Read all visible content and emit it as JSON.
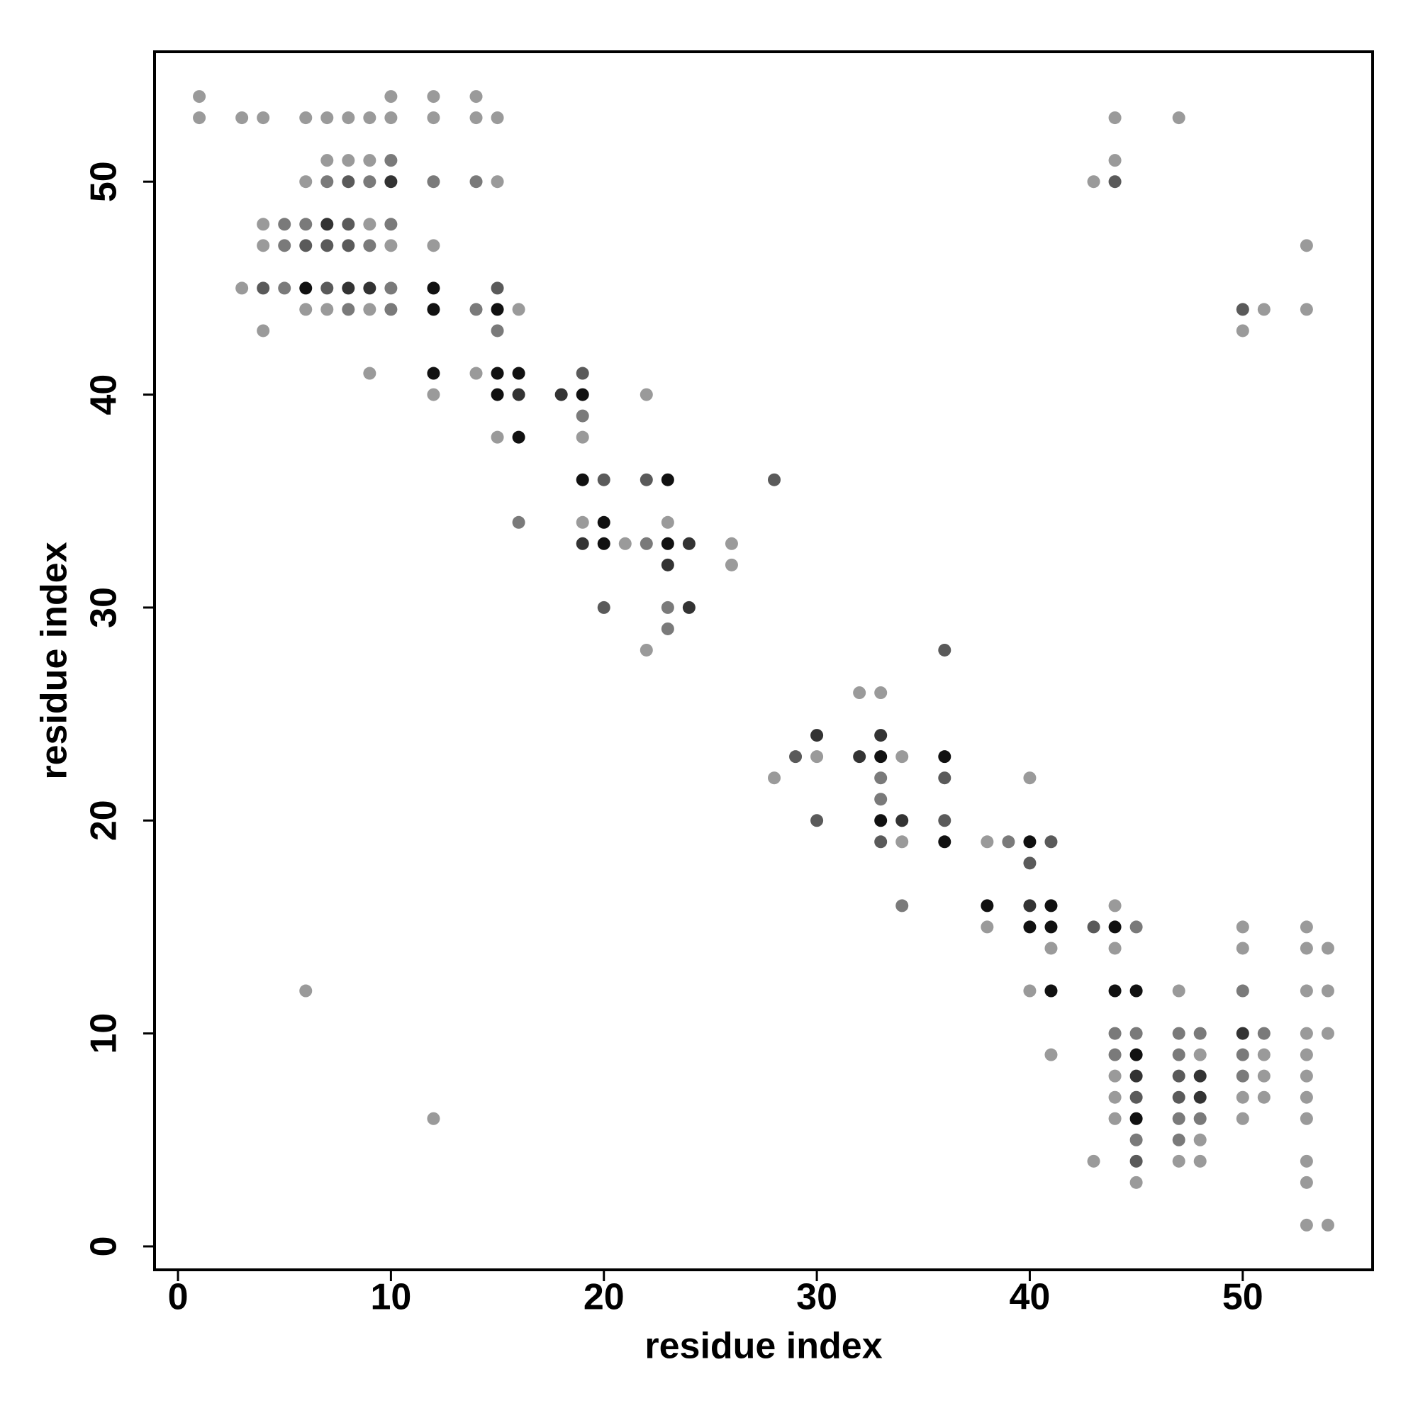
{
  "chart_data": {
    "type": "scatter",
    "xlabel": "residue index",
    "ylabel": "residue index",
    "xlim": [
      -1.1,
      56.1
    ],
    "ylim": [
      -1.1,
      56.1
    ],
    "xticks": [
      0,
      10,
      20,
      30,
      40,
      50
    ],
    "yticks": [
      0,
      10,
      20,
      30,
      40,
      50
    ],
    "series": [
      {
        "color": "#9a9a9a",
        "x": [
          1,
          10,
          12,
          14,
          1,
          3,
          4,
          6,
          7,
          8,
          9,
          10,
          12,
          14,
          15,
          44,
          47,
          7,
          8,
          9,
          44,
          6,
          15,
          43,
          4,
          9,
          4,
          10,
          12,
          53,
          3,
          6,
          7,
          9,
          16,
          51,
          53,
          4,
          50,
          9,
          14,
          12,
          22,
          15,
          19,
          19,
          23,
          21,
          26,
          26,
          22,
          32,
          33,
          30,
          34,
          28,
          40,
          34,
          38,
          44,
          38,
          50,
          53,
          41,
          44,
          50,
          53,
          54,
          6,
          40,
          47,
          53,
          54,
          53,
          54,
          41,
          48,
          51,
          53,
          44,
          51,
          53,
          44,
          50,
          51,
          53,
          12,
          44,
          50,
          53,
          48,
          43,
          47,
          48,
          53,
          45,
          53,
          53,
          54
        ],
        "y": [
          54,
          54,
          54,
          54,
          53,
          53,
          53,
          53,
          53,
          53,
          53,
          53,
          53,
          53,
          53,
          53,
          53,
          51,
          51,
          51,
          51,
          50,
          50,
          50,
          48,
          48,
          47,
          47,
          47,
          47,
          45,
          44,
          44,
          44,
          44,
          44,
          44,
          43,
          43,
          41,
          41,
          40,
          40,
          38,
          38,
          34,
          34,
          33,
          33,
          32,
          28,
          26,
          26,
          23,
          23,
          22,
          22,
          19,
          19,
          16,
          15,
          15,
          15,
          14,
          14,
          14,
          14,
          14,
          12,
          12,
          12,
          12,
          12,
          10,
          10,
          9,
          9,
          9,
          9,
          8,
          8,
          8,
          7,
          7,
          7,
          7,
          6,
          6,
          6,
          6,
          5,
          4,
          4,
          4,
          4,
          3,
          3,
          1,
          1
        ]
      },
      {
        "color": "#7a7a7a",
        "x": [
          10,
          7,
          9,
          12,
          14,
          5,
          6,
          10,
          5,
          9,
          5,
          10,
          8,
          10,
          14,
          15,
          19,
          16,
          22,
          23,
          23,
          33,
          33,
          39,
          34,
          45,
          50,
          44,
          45,
          47,
          48,
          51,
          44,
          47,
          50,
          50,
          47,
          48,
          45,
          47
        ],
        "y": [
          51,
          50,
          50,
          50,
          50,
          48,
          48,
          48,
          47,
          47,
          45,
          45,
          44,
          44,
          44,
          43,
          39,
          34,
          33,
          30,
          29,
          22,
          21,
          19,
          16,
          15,
          12,
          10,
          10,
          10,
          10,
          10,
          9,
          9,
          9,
          8,
          6,
          6,
          5,
          5
        ]
      },
      {
        "color": "#5a5a5a",
        "x": [
          8,
          44,
          8,
          6,
          7,
          8,
          4,
          7,
          15,
          50,
          19,
          20,
          22,
          28,
          20,
          36,
          29,
          36,
          30,
          36,
          33,
          41,
          40,
          43,
          47,
          45,
          47,
          45
        ],
        "y": [
          50,
          50,
          48,
          47,
          47,
          47,
          45,
          45,
          45,
          44,
          41,
          36,
          36,
          36,
          30,
          28,
          23,
          22,
          20,
          20,
          19,
          19,
          18,
          15,
          8,
          7,
          7,
          4
        ]
      },
      {
        "color": "#333333",
        "x": [
          10,
          7,
          8,
          9,
          16,
          18,
          19,
          24,
          23,
          24,
          30,
          33,
          32,
          34,
          40,
          50,
          45,
          48,
          48
        ],
        "y": [
          50,
          48,
          45,
          45,
          40,
          40,
          33,
          33,
          32,
          30,
          24,
          24,
          23,
          20,
          16,
          10,
          8,
          8,
          7
        ]
      },
      {
        "color": "#111111",
        "x": [
          6,
          12,
          12,
          15,
          12,
          15,
          16,
          15,
          19,
          16,
          19,
          23,
          20,
          20,
          23,
          33,
          36,
          33,
          36,
          40,
          38,
          41,
          40,
          41,
          44,
          41,
          44,
          45,
          45,
          45
        ],
        "y": [
          45,
          45,
          44,
          44,
          41,
          41,
          41,
          40,
          40,
          38,
          36,
          36,
          34,
          33,
          33,
          23,
          23,
          20,
          19,
          19,
          16,
          16,
          15,
          15,
          15,
          12,
          12,
          12,
          9,
          6
        ]
      }
    ]
  }
}
